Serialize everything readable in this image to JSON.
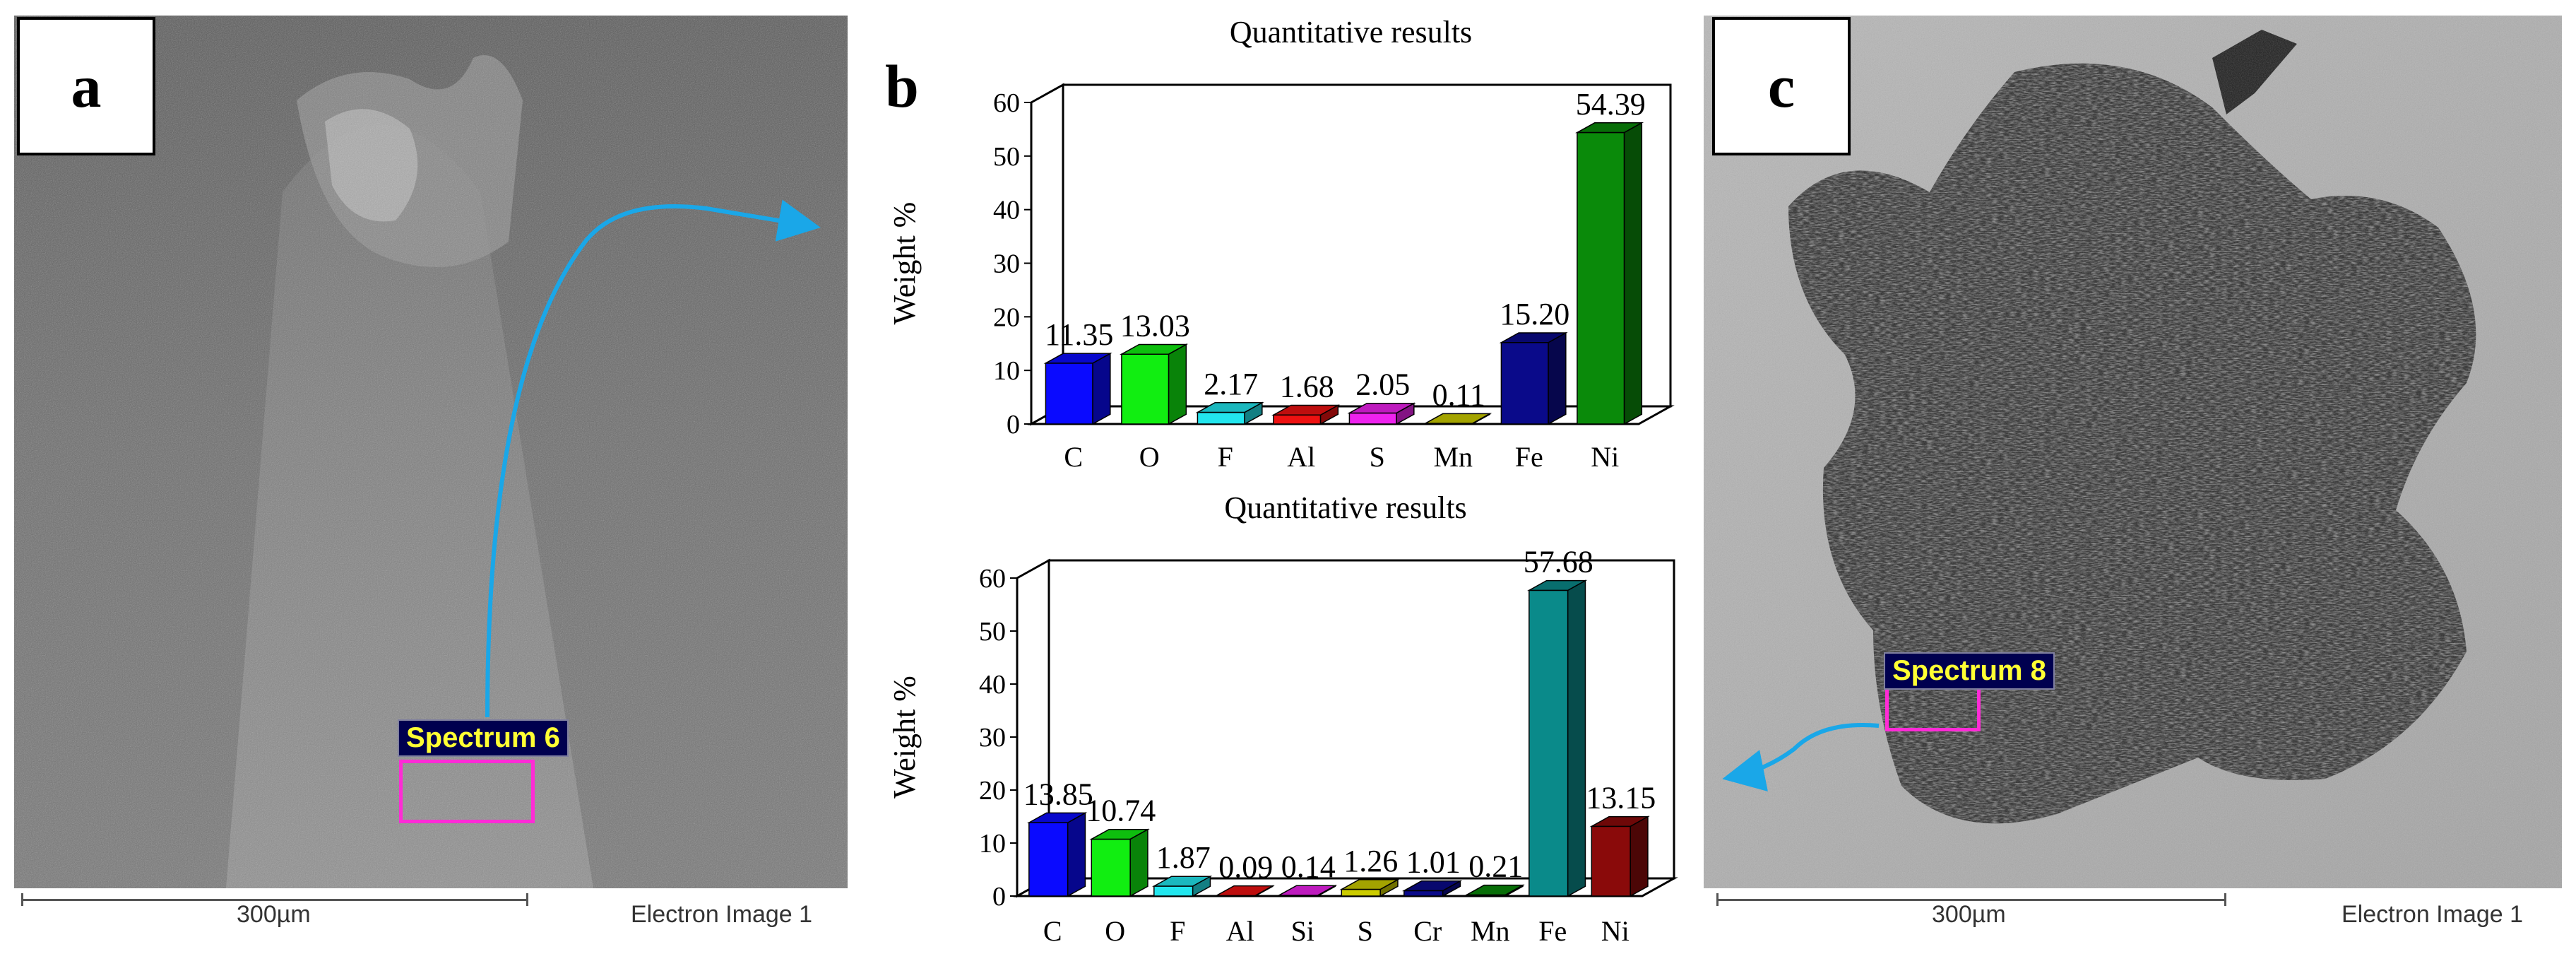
{
  "panels": {
    "a": {
      "label": "a",
      "spectrum_label": "Spectrum 6",
      "scale_label": "300µm",
      "image_caption": "Electron Image 1"
    },
    "b": {
      "label": "b"
    },
    "c": {
      "label": "c",
      "spectrum_label": "Spectrum 8",
      "scale_label": "300µm",
      "image_caption": "Electron Image 1"
    }
  },
  "colors": {
    "arrow": "#1aa7e8",
    "spectrum_box": "#ff2bd6",
    "spectrum_label_bg": "#00004f",
    "spectrum_label_text": "#ffff33"
  },
  "chart_data": [
    {
      "type": "bar",
      "title": "Quantitative results",
      "xlabel": "",
      "ylabel": "Weight %",
      "ylim": [
        0,
        60
      ],
      "yticks": [
        0,
        10,
        20,
        30,
        40,
        50,
        60
      ],
      "categories": [
        "C",
        "O",
        "F",
        "Al",
        "S",
        "Mn",
        "Fe",
        "Ni"
      ],
      "values": [
        11.35,
        13.03,
        2.17,
        1.68,
        2.05,
        0.11,
        15.2,
        54.39
      ],
      "value_labels": [
        "11.35",
        "13.03",
        "2.17",
        "1.68",
        "2.05",
        "0.11",
        "15.20",
        "54.39"
      ],
      "colors": [
        "#0a0aff",
        "#11ee11",
        "#22e6ee",
        "#ee1111",
        "#ee22ee",
        "#cccc00",
        "#0a0a8a",
        "#0a8a0a"
      ]
    },
    {
      "type": "bar",
      "title": "Quantitative results",
      "xlabel": "",
      "ylabel": "Weight %",
      "ylim": [
        0,
        60
      ],
      "yticks": [
        0,
        10,
        20,
        30,
        40,
        50,
        60
      ],
      "categories": [
        "C",
        "O",
        "F",
        "Al",
        "Si",
        "S",
        "Cr",
        "Mn",
        "Fe",
        "Ni"
      ],
      "values": [
        13.85,
        10.74,
        1.87,
        0.09,
        0.14,
        1.26,
        1.01,
        0.21,
        57.68,
        13.15
      ],
      "value_labels": [
        "13.85",
        "10.74",
        "1.87",
        "0.09",
        "0.14",
        "1.26",
        "1.01",
        "0.21",
        "57.68",
        "13.15"
      ],
      "colors": [
        "#0a0aff",
        "#11ee11",
        "#22e6ee",
        "#ee1111",
        "#ee22ee",
        "#cccc00",
        "#0a0a8a",
        "#0a8a0a",
        "#0a8a8a",
        "#8a0a0a"
      ]
    }
  ]
}
